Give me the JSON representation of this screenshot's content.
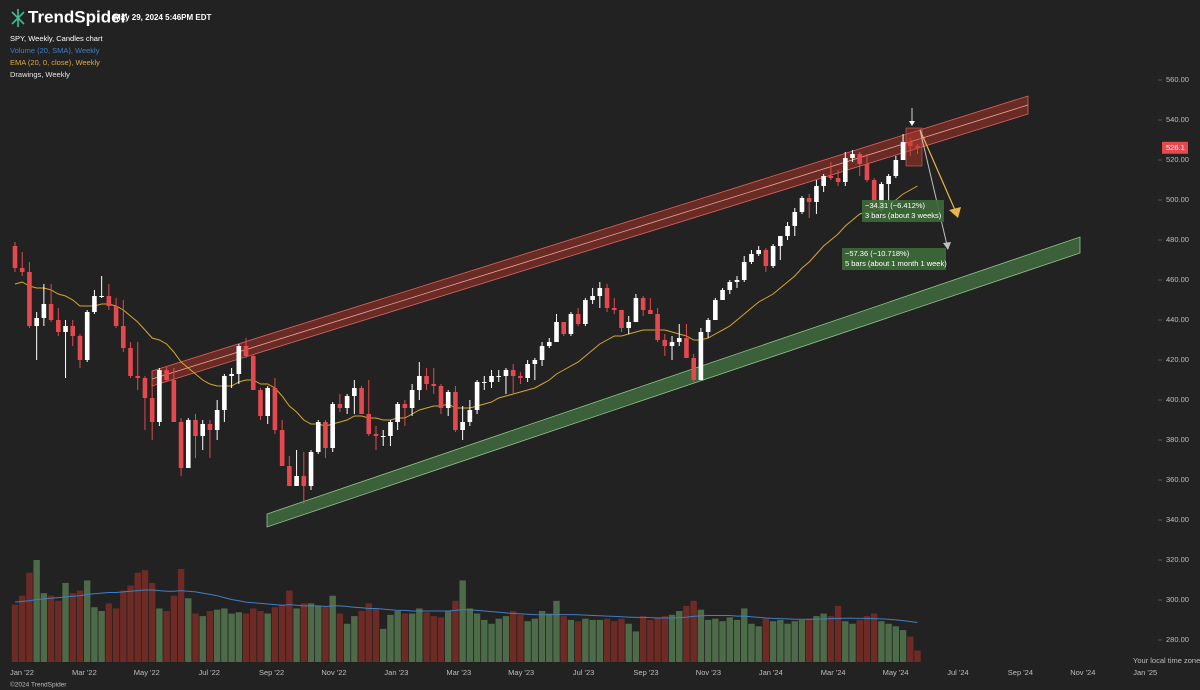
{
  "header": {
    "brand": "TrendSpider",
    "timestamp": "May 29, 2024 5:46PM EDT"
  },
  "legend": [
    {
      "text": "SPY, Weekly, Candles chart",
      "color": "#ffffff"
    },
    {
      "text": "Volume (20, SMA), Weekly",
      "color": "#3f7fc4"
    },
    {
      "text": "EMA (20, 0, close), Weekly",
      "color": "#e0a93a"
    },
    {
      "text": "Drawings, Weekly",
      "color": "#e6e6e6"
    }
  ],
  "chart_data": {
    "type": "candlestick",
    "up_color": "#ffffff",
    "down_color": "#e5484d",
    "volume_up_color": "#4d6b48",
    "volume_down_color": "#6e2a24",
    "ema_color": "#d4a72c",
    "volume_sma_color": "#3f7fc4",
    "ylim": [
      268,
      585
    ],
    "yticks": [
      {
        "value": 280,
        "label": "280.00"
      },
      {
        "value": 300,
        "label": "300.00"
      },
      {
        "value": 320,
        "label": "320.00"
      },
      {
        "value": 340,
        "label": "340.00"
      },
      {
        "value": 360,
        "label": "360.00"
      },
      {
        "value": 380,
        "label": "380.00"
      },
      {
        "value": 400,
        "label": "400.00"
      },
      {
        "value": 420,
        "label": "420.00"
      },
      {
        "value": 440,
        "label": "440.00"
      },
      {
        "value": 460,
        "label": "460.00"
      },
      {
        "value": 480,
        "label": "480.00"
      },
      {
        "value": 500,
        "label": "500.00"
      },
      {
        "value": 520,
        "label": "520.00"
      },
      {
        "value": 540,
        "label": "540.00"
      },
      {
        "value": 560,
        "label": "560.00"
      }
    ],
    "x_labels": [
      "Jan '22",
      "Mar '22",
      "May '22",
      "Jul '22",
      "Sep '22",
      "Nov '22",
      "Jan '23",
      "Mar '23",
      "May '23",
      "Jul '23",
      "Sep '23",
      "Nov '23",
      "Jan '24",
      "Mar '24",
      "May '24",
      "Jul '24",
      "Sep '24",
      "Nov '24",
      "Jan '25"
    ],
    "last_price": 526.1,
    "ohlc": [
      [
        477,
        479,
        464,
        466
      ],
      [
        466,
        474,
        462,
        464
      ],
      [
        464,
        469,
        436,
        437
      ],
      [
        437,
        444,
        420,
        441
      ],
      [
        441,
        458,
        437,
        448
      ],
      [
        448,
        458,
        439,
        440
      ],
      [
        440,
        446,
        432,
        434
      ],
      [
        434,
        440,
        411,
        437
      ],
      [
        437,
        440,
        427,
        432
      ],
      [
        432,
        433,
        416,
        420
      ],
      [
        420,
        445,
        419,
        444
      ],
      [
        444,
        455,
        443,
        452
      ],
      [
        452,
        462,
        451,
        452
      ],
      [
        452,
        458,
        445,
        447
      ],
      [
        447,
        451,
        436,
        437
      ],
      [
        437,
        450,
        424,
        426
      ],
      [
        426,
        429,
        411,
        412
      ],
      [
        412,
        429,
        405,
        411
      ],
      [
        411,
        412,
        385,
        401
      ],
      [
        401,
        408,
        380,
        389
      ],
      [
        389,
        416,
        387,
        415
      ],
      [
        415,
        417,
        409,
        410
      ],
      [
        410,
        416,
        389,
        389
      ],
      [
        389,
        391,
        362,
        366
      ],
      [
        366,
        391,
        366,
        390
      ],
      [
        390,
        393,
        371,
        382
      ],
      [
        382,
        390,
        375,
        388
      ],
      [
        388,
        390,
        371,
        385
      ],
      [
        385,
        400,
        380,
        395
      ],
      [
        395,
        413,
        389,
        412
      ],
      [
        412,
        416,
        406,
        413
      ],
      [
        413,
        428,
        408,
        427
      ],
      [
        427,
        431,
        421,
        422
      ],
      [
        422,
        423,
        405,
        405
      ],
      [
        405,
        406,
        390,
        392
      ],
      [
        392,
        407,
        388,
        406
      ],
      [
        406,
        411,
        383,
        385
      ],
      [
        385,
        390,
        367,
        367
      ],
      [
        367,
        372,
        357,
        357
      ],
      [
        357,
        375,
        357,
        362
      ],
      [
        362,
        374,
        348,
        357
      ],
      [
        357,
        375,
        355,
        374
      ],
      [
        374,
        390,
        373,
        389
      ],
      [
        389,
        390,
        371,
        376
      ],
      [
        376,
        399,
        374,
        398
      ],
      [
        398,
        403,
        394,
        396
      ],
      [
        396,
        403,
        393,
        402
      ],
      [
        402,
        410,
        393,
        406
      ],
      [
        406,
        407,
        393,
        393
      ],
      [
        393,
        410,
        382,
        383
      ],
      [
        383,
        387,
        375,
        382
      ],
      [
        382,
        385,
        377,
        382
      ],
      [
        382,
        390,
        377,
        389
      ],
      [
        389,
        399,
        385,
        398
      ],
      [
        398,
        400,
        387,
        396
      ],
      [
        396,
        408,
        392,
        405
      ],
      [
        405,
        419,
        400,
        412
      ],
      [
        412,
        416,
        405,
        408
      ],
      [
        408,
        416,
        403,
        407
      ],
      [
        407,
        408,
        393,
        396
      ],
      [
        396,
        405,
        392,
        404
      ],
      [
        404,
        407,
        384,
        385
      ],
      [
        385,
        397,
        380,
        389
      ],
      [
        389,
        400,
        387,
        395
      ],
      [
        395,
        410,
        393,
        409
      ],
      [
        409,
        412,
        405,
        409
      ],
      [
        409,
        415,
        406,
        412
      ],
      [
        412,
        415,
        409,
        412
      ],
      [
        412,
        416,
        403,
        415
      ],
      [
        415,
        418,
        403,
        412
      ],
      [
        412,
        414,
        408,
        411
      ],
      [
        411,
        420,
        409,
        418
      ],
      [
        418,
        421,
        410,
        420
      ],
      [
        420,
        429,
        417,
        427
      ],
      [
        427,
        431,
        426,
        429
      ],
      [
        429,
        443,
        429,
        439
      ],
      [
        439,
        439,
        432,
        433
      ],
      [
        433,
        444,
        432,
        443
      ],
      [
        443,
        446,
        437,
        438
      ],
      [
        438,
        451,
        437,
        450
      ],
      [
        450,
        456,
        448,
        452
      ],
      [
        452,
        459,
        446,
        456
      ],
      [
        456,
        458,
        444,
        446
      ],
      [
        446,
        451,
        443,
        445
      ],
      [
        445,
        445,
        434,
        436
      ],
      [
        436,
        442,
        433,
        439
      ],
      [
        439,
        453,
        439,
        451
      ],
      [
        451,
        452,
        442,
        445
      ],
      [
        445,
        451,
        443,
        443
      ],
      [
        443,
        446,
        429,
        430
      ],
      [
        430,
        433,
        422,
        427
      ],
      [
        427,
        432,
        420,
        429
      ],
      [
        429,
        438,
        427,
        431
      ],
      [
        431,
        438,
        421,
        421
      ],
      [
        421,
        423,
        409,
        410
      ],
      [
        410,
        436,
        410,
        434
      ],
      [
        434,
        441,
        431,
        440
      ],
      [
        440,
        451,
        440,
        450
      ],
      [
        450,
        456,
        450,
        455
      ],
      [
        455,
        460,
        453,
        459
      ],
      [
        459,
        462,
        456,
        460
      ],
      [
        460,
        472,
        459,
        469
      ],
      [
        469,
        475,
        468,
        473
      ],
      [
        473,
        477,
        472,
        475
      ],
      [
        475,
        476,
        464,
        467
      ],
      [
        467,
        478,
        466,
        477
      ],
      [
        477,
        482,
        470,
        482
      ],
      [
        482,
        489,
        480,
        487
      ],
      [
        487,
        496,
        482,
        494
      ],
      [
        494,
        502,
        493,
        501
      ],
      [
        501,
        503,
        491,
        499
      ],
      [
        499,
        510,
        493,
        507
      ],
      [
        507,
        513,
        504,
        512
      ],
      [
        512,
        519,
        510,
        511
      ],
      [
        511,
        515,
        507,
        509
      ],
      [
        509,
        524,
        507,
        521
      ],
      [
        521,
        525,
        519,
        523
      ],
      [
        523,
        524,
        512,
        518
      ],
      [
        518,
        523,
        509,
        510
      ],
      [
        510,
        511,
        493,
        495
      ],
      [
        495,
        509,
        494,
        508
      ],
      [
        508,
        513,
        499,
        512
      ],
      [
        512,
        522,
        511,
        520
      ],
      [
        520,
        533,
        520,
        529
      ],
      [
        529,
        531,
        522,
        527
      ],
      [
        527,
        528,
        523,
        526.1
      ]
    ],
    "ema": [
      458,
      459,
      457,
      456,
      456,
      455,
      453,
      452,
      450,
      447,
      447,
      447,
      448,
      448,
      447,
      445,
      442,
      439,
      435,
      431,
      430,
      428,
      424,
      419,
      416,
      413,
      410,
      408,
      407,
      407,
      407,
      409,
      410,
      410,
      408,
      408,
      406,
      402,
      397,
      394,
      390,
      388,
      388,
      387,
      388,
      389,
      390,
      392,
      392,
      391,
      391,
      390,
      390,
      391,
      391,
      393,
      395,
      396,
      397,
      397,
      398,
      396,
      396,
      396,
      397,
      398,
      399,
      401,
      402,
      403,
      404,
      405,
      406,
      408,
      410,
      413,
      415,
      417,
      419,
      422,
      425,
      428,
      430,
      432,
      432,
      433,
      434,
      435,
      435,
      435,
      435,
      434,
      433,
      432,
      430,
      430,
      431,
      433,
      435,
      437,
      440,
      443,
      446,
      449,
      451,
      453,
      456,
      459,
      462,
      466,
      469,
      473,
      477,
      480,
      483,
      487,
      490,
      493,
      494,
      494,
      496,
      498,
      500,
      503,
      505,
      507
    ],
    "volume": [
      450,
      520,
      700,
      800,
      540,
      520,
      480,
      620,
      540,
      560,
      640,
      430,
      400,
      460,
      420,
      560,
      600,
      700,
      720,
      620,
      420,
      400,
      520,
      730,
      500,
      380,
      360,
      400,
      410,
      420,
      380,
      390,
      380,
      420,
      400,
      380,
      430,
      450,
      560,
      420,
      460,
      460,
      440,
      430,
      520,
      380,
      300,
      360,
      400,
      460,
      420,
      260,
      370,
      400,
      380,
      380,
      420,
      390,
      360,
      350,
      400,
      480,
      640,
      420,
      380,
      330,
      300,
      340,
      360,
      400,
      370,
      320,
      340,
      400,
      380,
      480,
      360,
      330,
      320,
      340,
      330,
      330,
      340,
      320,
      340,
      300,
      240,
      360,
      330,
      350,
      360,
      370,
      400,
      440,
      480,
      410,
      330,
      340,
      320,
      350,
      330,
      420,
      300,
      280,
      340,
      320,
      330,
      300,
      320,
      330,
      340,
      360,
      380,
      360,
      440,
      320,
      300,
      330,
      360,
      380,
      320,
      300,
      280,
      250,
      200,
      90
    ],
    "volume_sma": [
      470,
      475,
      480,
      490,
      495,
      500,
      505,
      510,
      515,
      520,
      530,
      535,
      540,
      545,
      545,
      550,
      555,
      560,
      565,
      565,
      560,
      555,
      555,
      560,
      555,
      550,
      540,
      530,
      520,
      505,
      490,
      480,
      470,
      465,
      460,
      455,
      450,
      445,
      450,
      445,
      440,
      440,
      440,
      435,
      440,
      440,
      435,
      430,
      425,
      420,
      420,
      415,
      410,
      405,
      405,
      400,
      400,
      400,
      400,
      400,
      400,
      405,
      410,
      410,
      405,
      400,
      395,
      390,
      385,
      380,
      378,
      375,
      372,
      370,
      370,
      372,
      372,
      372,
      370,
      368,
      365,
      362,
      360,
      358,
      355,
      352,
      350,
      350,
      348,
      345,
      345,
      345,
      348,
      352,
      358,
      362,
      365,
      365,
      365,
      365,
      360,
      360,
      355,
      350,
      345,
      342,
      340,
      338,
      335,
      335,
      335,
      335,
      338,
      340,
      342,
      343,
      343,
      342,
      342,
      340,
      338,
      335,
      330,
      325,
      318,
      310
    ],
    "annotations": [
      {
        "lines": [
          "−34.31 (−6.412%)",
          "3 bars (about 3 weeks)"
        ]
      },
      {
        "lines": [
          "−57.36 (−10.718%)",
          "5 bars (about 1 month 1 week)"
        ]
      }
    ]
  },
  "footer": {
    "time_zone_note": "Your local time zone",
    "copyright": "©2024 TrendSpider"
  }
}
